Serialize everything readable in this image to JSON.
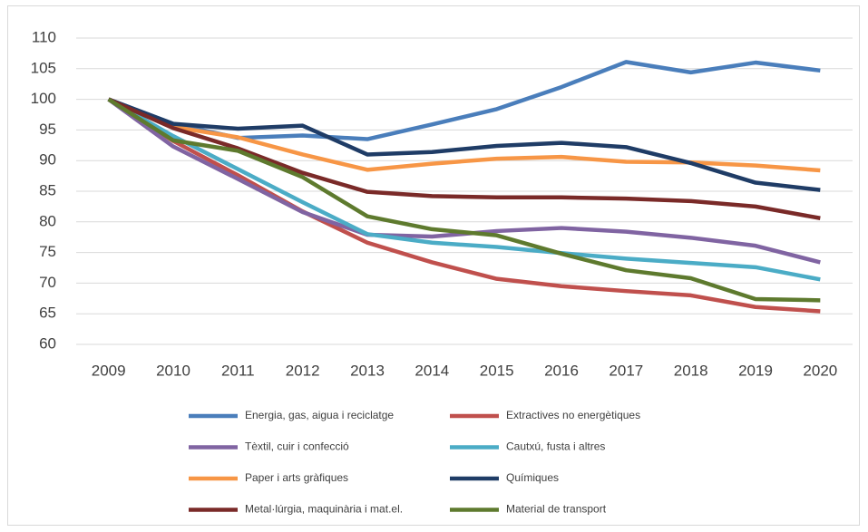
{
  "chart_data": {
    "type": "line",
    "categories": [
      "2009",
      "2010",
      "2011",
      "2012",
      "2013",
      "2014",
      "2015",
      "2016",
      "2017",
      "2018",
      "2019",
      "2020"
    ],
    "series": [
      {
        "name": "Energia, gas, aigua i reciclatge",
        "color": "#4a7ebb",
        "values": [
          100,
          96,
          93.7,
          94.1,
          93.5,
          95.9,
          98.4,
          102,
          106.1,
          104.4,
          106,
          104.7
        ]
      },
      {
        "name": "Extractives no energètiques",
        "color": "#c0504d",
        "values": [
          100,
          93.2,
          87.6,
          81.7,
          76.6,
          73.4,
          70.7,
          69.5,
          68.7,
          68,
          66.1,
          65.4
        ]
      },
      {
        "name": "Tèxtil, cuir i confecció",
        "color": "#8064a2",
        "values": [
          100,
          92.3,
          87,
          81.6,
          77.9,
          77.6,
          78.5,
          79,
          78.4,
          77.4,
          76.1,
          73.4
        ]
      },
      {
        "name": "Cautxú, fusta i altres",
        "color": "#4bacc6",
        "values": [
          100,
          94,
          88.6,
          83.2,
          78,
          76.6,
          75.9,
          74.9,
          74,
          73.3,
          72.6,
          70.6
        ]
      },
      {
        "name": "Paper i arts gràfiques",
        "color": "#f79646",
        "values": [
          100,
          95.5,
          93.8,
          91,
          88.5,
          89.5,
          90.3,
          90.6,
          89.8,
          89.7,
          89.2,
          88.4
        ]
      },
      {
        "name": "Químiques",
        "color": "#1f3c66",
        "values": [
          100,
          96,
          95.2,
          95.7,
          91,
          91.4,
          92.4,
          92.9,
          92.2,
          89.6,
          86.4,
          85.2
        ]
      },
      {
        "name": "Metal·lúrgia, maquinària i mat.el.",
        "color": "#7a2a28",
        "values": [
          100,
          95.3,
          92,
          88,
          84.9,
          84.2,
          84,
          84,
          83.8,
          83.4,
          82.5,
          80.6
        ]
      },
      {
        "name": "Material de transport",
        "color": "#5e7a2e",
        "values": [
          100,
          93.3,
          91.6,
          87.3,
          80.9,
          78.8,
          77.8,
          74.8,
          72.1,
          70.8,
          67.4,
          67.2
        ]
      }
    ],
    "ylim": [
      60,
      110
    ],
    "yticks": [
      60,
      65,
      70,
      75,
      80,
      85,
      90,
      95,
      100,
      105,
      110
    ],
    "grid": true,
    "legend": "bottom"
  }
}
